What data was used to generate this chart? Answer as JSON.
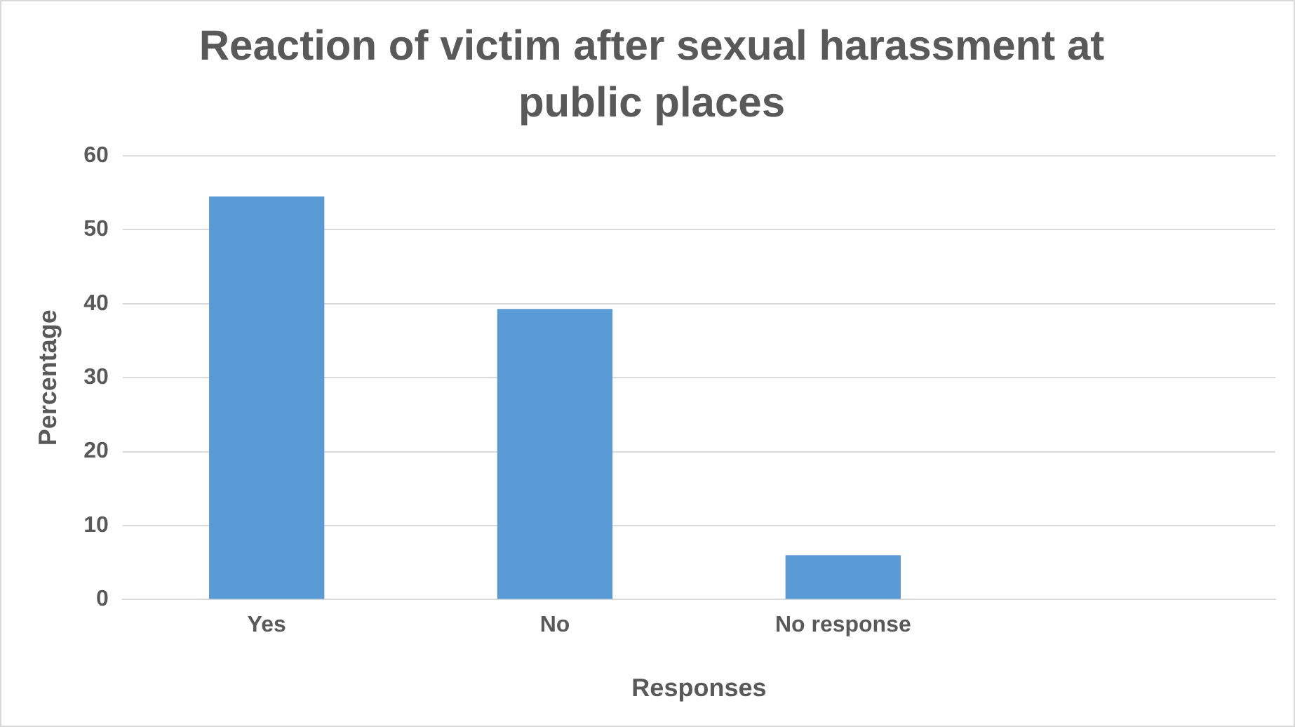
{
  "chart_data": {
    "type": "bar",
    "title": "Reaction of victim after sexual harassment at public places",
    "xlabel": "Responses",
    "ylabel": "Percentage",
    "categories": [
      "Yes",
      "No",
      "No response",
      null
    ],
    "values": [
      54.5,
      39.3,
      6.0,
      null
    ],
    "color": "#5b9bd5",
    "ylim": [
      0,
      60
    ],
    "yticks": [
      0,
      10,
      20,
      30,
      40,
      50,
      60
    ],
    "grid": "y",
    "legend": false
  }
}
